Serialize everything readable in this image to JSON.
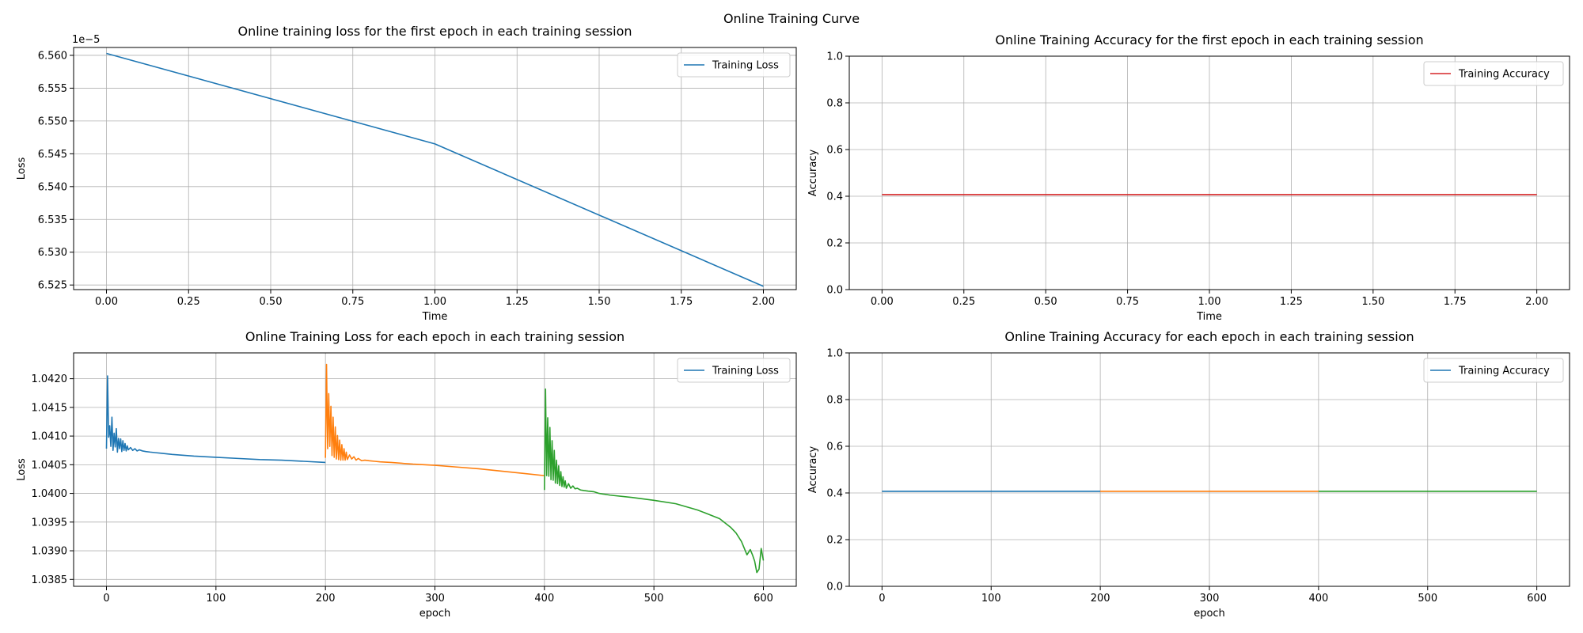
{
  "figure_title": "Online Training Curve",
  "chart_data": [
    {
      "type": "line",
      "title": "Online training loss for the first epoch in each training session",
      "xlabel": "Time",
      "ylabel": "Loss",
      "xlim": [
        -0.1,
        2.1
      ],
      "ylim": [
        6.5243,
        6.5612
      ],
      "y_offset_label": "1e−5",
      "xticks": [
        0,
        0.25,
        0.5,
        0.75,
        1.0,
        1.25,
        1.5,
        1.75,
        2.0
      ],
      "xtick_labels": [
        "0.00",
        "0.25",
        "0.50",
        "0.75",
        "1.00",
        "1.25",
        "1.50",
        "1.75",
        "2.00"
      ],
      "yticks": [
        6.525,
        6.53,
        6.535,
        6.54,
        6.545,
        6.55,
        6.555,
        6.56
      ],
      "ytick_labels": [
        "6.525",
        "6.530",
        "6.535",
        "6.540",
        "6.545",
        "6.550",
        "6.555",
        "6.560"
      ],
      "grid": true,
      "legend": "top-right",
      "series": [
        {
          "name": "Training Loss",
          "color": "#1f77b4",
          "x": [
            0,
            1,
            2
          ],
          "y": [
            6.5603,
            6.5465,
            6.5248
          ]
        }
      ]
    },
    {
      "type": "line",
      "title": "Online Training Accuracy for the first epoch in each training session",
      "xlabel": "Time",
      "ylabel": "Accuracy",
      "xlim": [
        -0.1,
        2.1
      ],
      "ylim": [
        0,
        1
      ],
      "xticks": [
        0,
        0.25,
        0.5,
        0.75,
        1.0,
        1.25,
        1.5,
        1.75,
        2.0
      ],
      "xtick_labels": [
        "0.00",
        "0.25",
        "0.50",
        "0.75",
        "1.00",
        "1.25",
        "1.50",
        "1.75",
        "2.00"
      ],
      "yticks": [
        0,
        0.2,
        0.4,
        0.6,
        0.8,
        1.0
      ],
      "ytick_labels": [
        "0.0",
        "0.2",
        "0.4",
        "0.6",
        "0.8",
        "1.0"
      ],
      "grid": true,
      "legend": "top-right",
      "series": [
        {
          "name": "Training Accuracy",
          "color": "#d62728",
          "x": [
            0,
            2
          ],
          "y": [
            0.407,
            0.407
          ]
        }
      ]
    },
    {
      "type": "line",
      "title": "Online Training Loss for each epoch in each training session",
      "xlabel": "epoch",
      "ylabel": "Loss",
      "xlim": [
        -30,
        630
      ],
      "ylim": [
        1.03838,
        1.04245
      ],
      "xticks": [
        0,
        100,
        200,
        300,
        400,
        500,
        600
      ],
      "xtick_labels": [
        "0",
        "100",
        "200",
        "300",
        "400",
        "500",
        "600"
      ],
      "yticks": [
        1.0385,
        1.039,
        1.0395,
        1.04,
        1.0405,
        1.041,
        1.0415,
        1.042
      ],
      "ytick_labels": [
        "1.0385",
        "1.0390",
        "1.0395",
        "1.0400",
        "1.0405",
        "1.0410",
        "1.0415",
        "1.0420"
      ],
      "grid": true,
      "legend": "top-right",
      "series": [
        {
          "name": "Training Loss",
          "color": "#1f77b4",
          "x": [
            0,
            1,
            2,
            3,
            4,
            5,
            6,
            7,
            8,
            9,
            10,
            11,
            12,
            13,
            14,
            15,
            16,
            17,
            18,
            19,
            20,
            22,
            24,
            26,
            28,
            30,
            33,
            36,
            40,
            45,
            50,
            60,
            80,
            100,
            120,
            140,
            160,
            180,
            200
          ],
          "y": [
            1.04078,
            1.04205,
            1.04098,
            1.04118,
            1.04082,
            1.04133,
            1.04075,
            1.04105,
            1.04081,
            1.04113,
            1.04072,
            1.04096,
            1.04078,
            1.04095,
            1.04073,
            1.04092,
            1.04075,
            1.04087,
            1.04074,
            1.04083,
            1.04076,
            1.0408,
            1.04075,
            1.04078,
            1.04074,
            1.04076,
            1.04074,
            1.04073,
            1.04072,
            1.04071,
            1.0407,
            1.04068,
            1.04065,
            1.04063,
            1.04061,
            1.04059,
            1.04058,
            1.04056,
            1.04054
          ]
        },
        {
          "name": "",
          "color": "#ff7f0e",
          "x": [
            200,
            201,
            202,
            203,
            204,
            205,
            206,
            207,
            208,
            209,
            210,
            211,
            212,
            213,
            214,
            215,
            216,
            217,
            218,
            219,
            220,
            222,
            224,
            226,
            228,
            230,
            233,
            236,
            240,
            245,
            250,
            260,
            280,
            300,
            320,
            340,
            360,
            380,
            400
          ],
          "y": [
            1.04062,
            1.04225,
            1.04078,
            1.04174,
            1.04082,
            1.04152,
            1.04066,
            1.04133,
            1.04063,
            1.04116,
            1.0406,
            1.04101,
            1.04059,
            1.04093,
            1.04058,
            1.04085,
            1.04058,
            1.04078,
            1.04058,
            1.04072,
            1.04059,
            1.04067,
            1.0406,
            1.04064,
            1.04058,
            1.04061,
            1.04057,
            1.04058,
            1.04057,
            1.04056,
            1.04055,
            1.04054,
            1.04051,
            1.04049,
            1.04046,
            1.04043,
            1.04039,
            1.04035,
            1.04031
          ]
        },
        {
          "name": "",
          "color": "#2ca02c",
          "x": [
            400,
            401,
            402,
            403,
            404,
            405,
            406,
            407,
            408,
            409,
            410,
            411,
            412,
            413,
            414,
            415,
            416,
            417,
            418,
            419,
            420,
            422,
            424,
            426,
            428,
            430,
            433,
            436,
            440,
            445,
            450,
            460,
            480,
            500,
            520,
            540,
            560,
            570,
            575,
            580,
            585,
            588,
            590,
            592,
            594,
            596,
            598,
            600
          ],
          "y": [
            1.04006,
            1.04182,
            1.04031,
            1.04132,
            1.0403,
            1.04115,
            1.04024,
            1.04092,
            1.04023,
            1.04075,
            1.04018,
            1.04058,
            1.04017,
            1.04048,
            1.04014,
            1.04038,
            1.04012,
            1.04029,
            1.04011,
            1.04022,
            1.04009,
            1.04017,
            1.04009,
            1.04013,
            1.04008,
            1.04009,
            1.04006,
            1.04005,
            1.04004,
            1.04003,
            1.04,
            1.03997,
            1.03993,
            1.03988,
            1.03982,
            1.03971,
            1.03956,
            1.03941,
            1.03931,
            1.03916,
            1.03893,
            1.03902,
            1.03893,
            1.03882,
            1.03862,
            1.03868,
            1.03904,
            1.03883
          ]
        }
      ]
    },
    {
      "type": "line",
      "title": "Online Training Accuracy for each epoch in each training session",
      "xlabel": "epoch",
      "ylabel": "Accuracy",
      "xlim": [
        -30,
        630
      ],
      "ylim": [
        0,
        1
      ],
      "xticks": [
        0,
        100,
        200,
        300,
        400,
        500,
        600
      ],
      "xtick_labels": [
        "0",
        "100",
        "200",
        "300",
        "400",
        "500",
        "600"
      ],
      "yticks": [
        0,
        0.2,
        0.4,
        0.6,
        0.8,
        1.0
      ],
      "ytick_labels": [
        "0.0",
        "0.2",
        "0.4",
        "0.6",
        "0.8",
        "1.0"
      ],
      "grid": true,
      "legend": "top-right",
      "series": [
        {
          "name": "Training Accuracy",
          "color": "#1f77b4",
          "x": [
            0,
            200
          ],
          "y": [
            0.407,
            0.407
          ]
        },
        {
          "name": "",
          "color": "#ff7f0e",
          "x": [
            200,
            400
          ],
          "y": [
            0.407,
            0.407
          ]
        },
        {
          "name": "",
          "color": "#2ca02c",
          "x": [
            400,
            600
          ],
          "y": [
            0.407,
            0.407
          ]
        }
      ]
    }
  ]
}
